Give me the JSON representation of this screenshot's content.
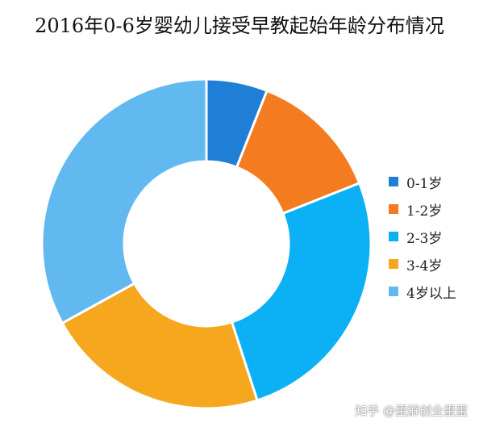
{
  "chart_data": {
    "type": "pie",
    "title": "2016年0-6岁婴幼儿接受早教起始年龄分布情况",
    "donut": true,
    "categories": [
      "0-1岁",
      "1-2岁",
      "2-3岁",
      "3-4岁",
      "4岁以上"
    ],
    "values": [
      6,
      13,
      26,
      22,
      33
    ],
    "colors": [
      "#1f7fd6",
      "#f47b20",
      "#0bb0f5",
      "#f6a71e",
      "#62b9f0"
    ],
    "legend": "right"
  },
  "watermark": "知乎 @蛋解创业蛋蛋"
}
